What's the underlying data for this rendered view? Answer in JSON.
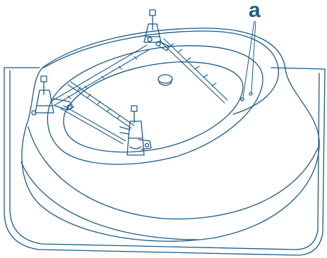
{
  "diagram": {
    "callout_label": "a",
    "line_color": "#1a5a8a",
    "callout_color": "#1a5a8a",
    "background": "#ffffff"
  }
}
